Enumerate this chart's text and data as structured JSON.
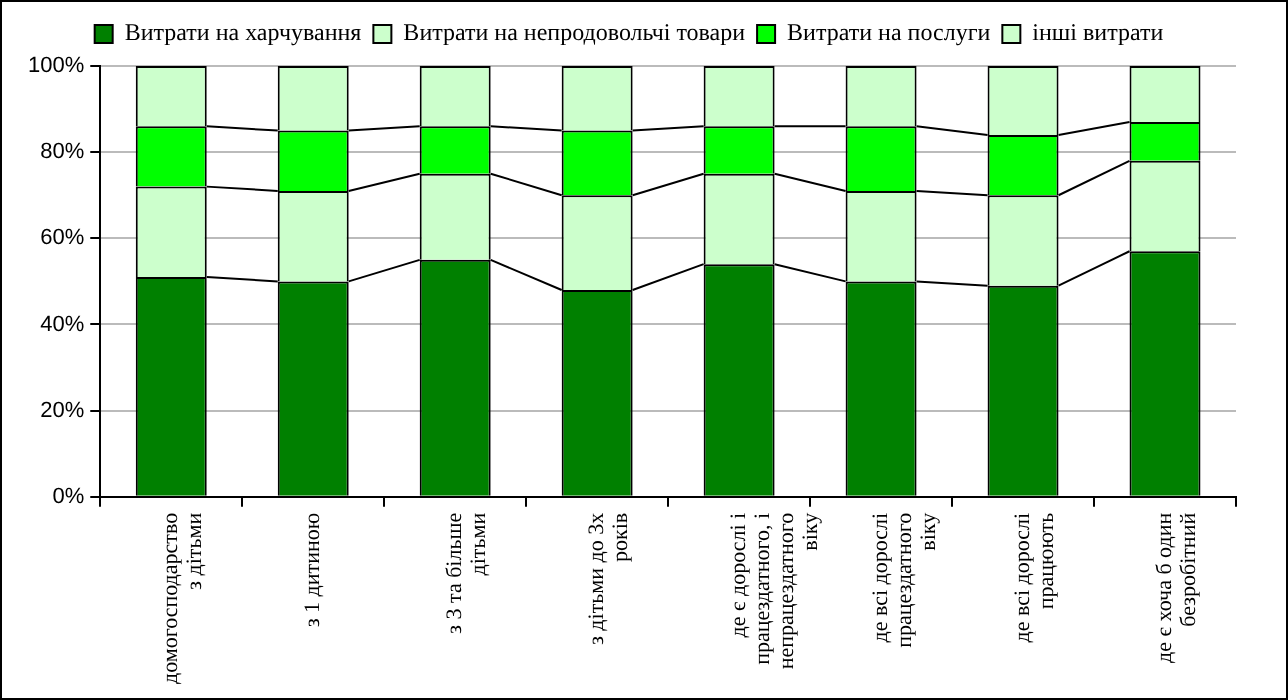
{
  "chart_data": {
    "type": "bar",
    "stacked": true,
    "categories": [
      "домогосподарство з дітьми",
      "з 1 дитиною",
      "з 3 та більше дітьми",
      "з дітьми до 3х років",
      "де є дорослі і працездатного, і непрацездатного віку",
      "де всі дорослі працездатного віку",
      "де всі дорослі працюють",
      "де є хоча б один безробітний"
    ],
    "series": [
      {
        "name": "Витрати на харчування",
        "color": "#008000",
        "values": [
          51,
          50,
          55,
          48,
          54,
          50,
          49,
          57
        ]
      },
      {
        "name": "Витрати на непродовольчі товари",
        "color": "#ccffcc",
        "values": [
          21,
          21,
          20,
          22,
          21,
          21,
          21,
          21
        ]
      },
      {
        "name": "Витрати на послуги",
        "color": "#00ff00",
        "values": [
          14,
          14,
          11,
          15,
          11,
          15,
          14,
          9
        ]
      },
      {
        "name": "інші витрати",
        "color": "#ccffcc",
        "values": [
          14,
          15,
          14,
          15,
          14,
          14,
          16,
          13
        ]
      }
    ],
    "ylim": [
      0,
      100
    ],
    "yticks": [
      {
        "value": 0,
        "label": "0%"
      },
      {
        "value": 20,
        "label": "20%"
      },
      {
        "value": 40,
        "label": "40%"
      },
      {
        "value": 60,
        "label": "60%"
      },
      {
        "value": 80,
        "label": "80%"
      },
      {
        "value": 100,
        "label": "100%"
      }
    ],
    "grid": "y",
    "legend": "top"
  }
}
